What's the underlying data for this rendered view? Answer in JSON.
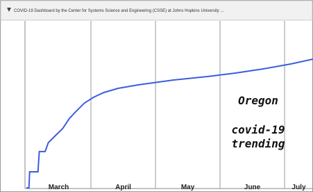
{
  "header": {
    "title": "COVID-19 Dashboard by the Center for Systems Science and Engineering (CSSE) at Johns Hopkins University ..."
  },
  "chart_data": {
    "type": "line",
    "categories": [
      "March",
      "April",
      "May",
      "June",
      "July"
    ],
    "annotations": [
      "Oregon",
      "covid-19",
      "trending"
    ],
    "x": [
      0,
      0.04,
      0.05,
      0.18,
      0.2,
      0.29,
      0.34,
      0.45,
      0.56,
      0.67,
      0.77,
      0.9,
      1.04,
      1.2,
      1.42,
      1.74,
      2.28,
      2.82,
      3.25,
      3.68,
      4.1,
      4.44
    ],
    "values": [
      0,
      0,
      9.6,
      9.6,
      21.7,
      21.7,
      27.1,
      31.3,
      35.4,
      41.7,
      45.8,
      50.8,
      54.2,
      57.1,
      59.6,
      61.7,
      64.6,
      66.7,
      68.8,
      71.3,
      74.2,
      77.1
    ],
    "color": "#3a5de0",
    "xlim": [
      0,
      4.44
    ],
    "ylim": [
      0,
      100
    ]
  }
}
